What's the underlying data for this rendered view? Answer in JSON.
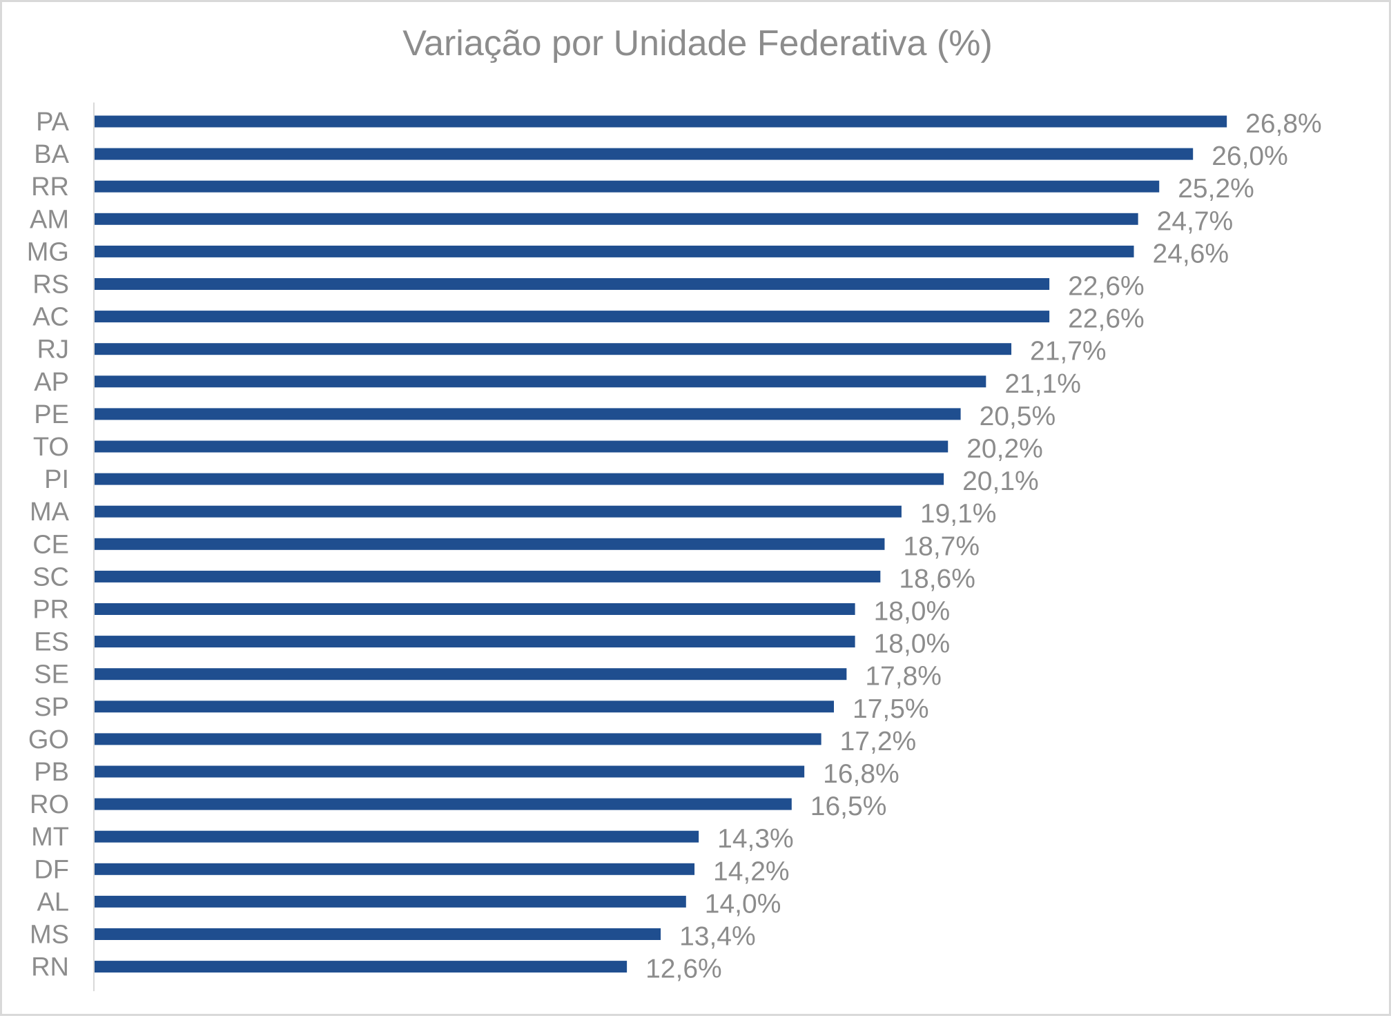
{
  "chart_data": {
    "type": "bar",
    "orientation": "horizontal",
    "title": "Variação por Unidade Federativa (%)",
    "xlabel": "",
    "ylabel": "",
    "xlim": [
      0,
      28
    ],
    "grid": false,
    "legend": "none",
    "categories": [
      "PA",
      "BA",
      "RR",
      "AM",
      "MG",
      "RS",
      "AC",
      "RJ",
      "AP",
      "PE",
      "TO",
      "PI",
      "MA",
      "CE",
      "SC",
      "PR",
      "ES",
      "SE",
      "SP",
      "GO",
      "PB",
      "RO",
      "MT",
      "DF",
      "AL",
      "MS",
      "RN"
    ],
    "values": [
      26.8,
      26.0,
      25.2,
      24.7,
      24.6,
      22.6,
      22.6,
      21.7,
      21.1,
      20.5,
      20.2,
      20.1,
      19.1,
      18.7,
      18.6,
      18.0,
      18.0,
      17.8,
      17.5,
      17.2,
      16.8,
      16.5,
      14.3,
      14.2,
      14.0,
      13.4,
      12.6
    ],
    "value_labels": [
      "26,8%",
      "26,0%",
      "25,2%",
      "24,7%",
      "24,6%",
      "22,6%",
      "22,6%",
      "21,7%",
      "21,1%",
      "20,5%",
      "20,2%",
      "20,1%",
      "19,1%",
      "18,7%",
      "18,6%",
      "18,0%",
      "18,0%",
      "17,8%",
      "17,5%",
      "17,2%",
      "16,8%",
      "16,5%",
      "14,3%",
      "14,2%",
      "14,0%",
      "13,4%",
      "12,6%"
    ],
    "bar_color": "#1f4e8f",
    "text_color": "#8c8c8c",
    "axis_color": "#d9d9d9"
  }
}
